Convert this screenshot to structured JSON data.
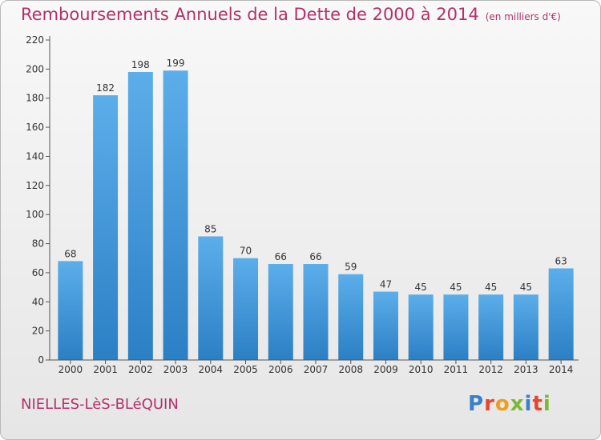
{
  "title": "Remboursements Annuels de la Dette de 2000 à 2014",
  "unit": "(en milliers d'€)",
  "town": "NIELLES-LèS-BLéQUIN",
  "logo": {
    "text": "Proxiti",
    "colors": [
      "#3a7fc8",
      "#e8452c",
      "#f29c1f",
      "#7db832",
      "#3a7fc8",
      "#e8452c",
      "#7db832"
    ]
  },
  "colors": {
    "bar_top": "#5caeea",
    "bar_bottom": "#2b7fc4",
    "title": "#b33069"
  },
  "chart_data": {
    "type": "bar",
    "categories": [
      "2000",
      "2001",
      "2002",
      "2003",
      "2004",
      "2005",
      "2006",
      "2007",
      "2008",
      "2009",
      "2010",
      "2011",
      "2012",
      "2013",
      "2014"
    ],
    "values": [
      68,
      182,
      198,
      199,
      85,
      70,
      66,
      66,
      59,
      47,
      45,
      45,
      45,
      45,
      63
    ],
    "ylim": [
      0,
      220
    ],
    "yticks": [
      0,
      20,
      40,
      60,
      80,
      100,
      120,
      140,
      160,
      180,
      200,
      220
    ],
    "grid": false
  }
}
